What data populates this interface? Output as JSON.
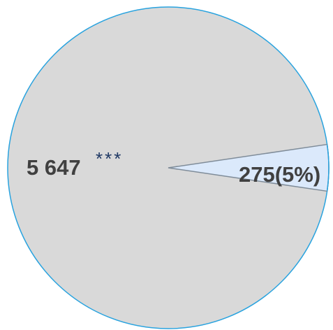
{
  "chart_data": {
    "type": "pie",
    "title": "",
    "slices": [
      {
        "value": 5647,
        "label": "5 647",
        "annotation": "***",
        "color": "#d9d9d9"
      },
      {
        "value": 275,
        "label": "275",
        "percent_label": "(5%)",
        "color": "#dbe9fb"
      }
    ],
    "outline_color": "#29a3df",
    "divider_color": "#7f8c99",
    "legend": "none",
    "grid": false
  }
}
